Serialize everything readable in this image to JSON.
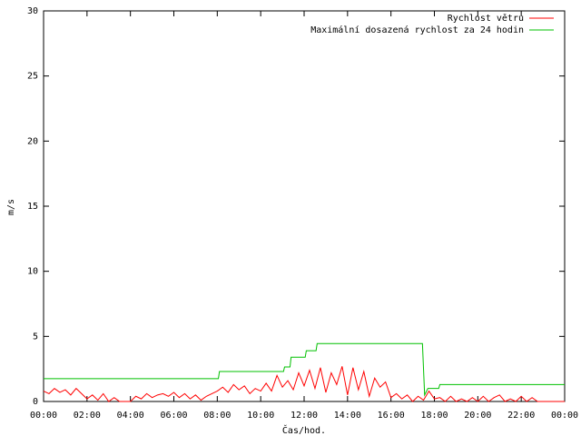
{
  "chart_data": {
    "type": "line",
    "xlabel": "Čas/hod.",
    "ylabel": "m/s",
    "xlim": [
      0,
      24
    ],
    "xticks": [
      {
        "value": 0,
        "label": "00:00"
      },
      {
        "value": 2,
        "label": "02:00"
      },
      {
        "value": 4,
        "label": "04:00"
      },
      {
        "value": 6,
        "label": "06:00"
      },
      {
        "value": 8,
        "label": "08:00"
      },
      {
        "value": 10,
        "label": "10:00"
      },
      {
        "value": 12,
        "label": "12:00"
      },
      {
        "value": 14,
        "label": "14:00"
      },
      {
        "value": 16,
        "label": "16:00"
      },
      {
        "value": 18,
        "label": "18:00"
      },
      {
        "value": 20,
        "label": "20:00"
      },
      {
        "value": 22,
        "label": "22:00"
      },
      {
        "value": 24,
        "label": "00:00"
      }
    ],
    "ylim": [
      0,
      30
    ],
    "yticks": [
      0,
      5,
      10,
      15,
      20,
      25,
      30
    ],
    "grid": false,
    "legend": "top-right",
    "series": [
      {
        "name": "Rychlost větru",
        "color": "#ff0000",
        "x": [
          0,
          0.25,
          0.5,
          0.75,
          1,
          1.25,
          1.5,
          1.75,
          2,
          2.25,
          2.5,
          2.75,
          3,
          3.25,
          3.5,
          3.75,
          4,
          4.25,
          4.5,
          4.75,
          5,
          5.25,
          5.5,
          5.75,
          6,
          6.25,
          6.5,
          6.75,
          7,
          7.25,
          7.5,
          7.75,
          8,
          8.25,
          8.5,
          8.75,
          9,
          9.25,
          9.5,
          9.75,
          10,
          10.25,
          10.5,
          10.75,
          11,
          11.25,
          11.5,
          11.75,
          12,
          12.25,
          12.5,
          12.75,
          13,
          13.25,
          13.5,
          13.75,
          14,
          14.25,
          14.5,
          14.75,
          15,
          15.25,
          15.5,
          15.75,
          16,
          16.25,
          16.5,
          16.75,
          17,
          17.25,
          17.5,
          17.75,
          18,
          18.25,
          18.5,
          18.75,
          19,
          19.25,
          19.5,
          19.75,
          20,
          20.25,
          20.5,
          20.75,
          21,
          21.25,
          21.5,
          21.75,
          22,
          22.25,
          22.5,
          22.75,
          23,
          23.25,
          23.5,
          23.75,
          24
        ],
        "values": [
          0.8,
          0.6,
          1.0,
          0.7,
          0.9,
          0.5,
          1.0,
          0.6,
          0.2,
          0.5,
          0.1,
          0.6,
          0,
          0.3,
          0,
          0,
          0,
          0.4,
          0.2,
          0.6,
          0.3,
          0.5,
          0.6,
          0.4,
          0.7,
          0.3,
          0.6,
          0.2,
          0.5,
          0.1,
          0.4,
          0.6,
          0.8,
          1.1,
          0.7,
          1.3,
          0.9,
          1.2,
          0.6,
          1.0,
          0.8,
          1.4,
          0.8,
          2.0,
          1.1,
          1.6,
          0.9,
          2.2,
          1.2,
          2.4,
          1.0,
          2.6,
          0.7,
          2.2,
          1.3,
          2.7,
          0.5,
          2.6,
          0.9,
          2.3,
          0.4,
          1.8,
          1.1,
          1.5,
          0.3,
          0.6,
          0.2,
          0.5,
          0,
          0.4,
          0.1,
          0.8,
          0.2,
          0.3,
          0,
          0.4,
          0,
          0.2,
          0,
          0.3,
          0,
          0.4,
          0,
          0.3,
          0.5,
          0,
          0.2,
          0,
          0.4,
          0,
          0.3,
          0,
          0,
          0,
          0,
          0,
          0
        ]
      },
      {
        "name": "Maximální dosazená rychlost za 24 hodin",
        "color": "#00c000",
        "x": [
          0,
          8.05,
          8.1,
          11.05,
          11.1,
          11.35,
          11.4,
          12.05,
          12.1,
          12.55,
          12.6,
          17.45,
          17.55,
          17.7,
          18.2,
          18.25,
          24
        ],
        "values": [
          1.75,
          1.75,
          2.3,
          2.3,
          2.65,
          2.65,
          3.4,
          3.4,
          3.9,
          3.9,
          4.45,
          4.45,
          0.5,
          1.0,
          1.0,
          1.3,
          1.3
        ]
      }
    ]
  }
}
